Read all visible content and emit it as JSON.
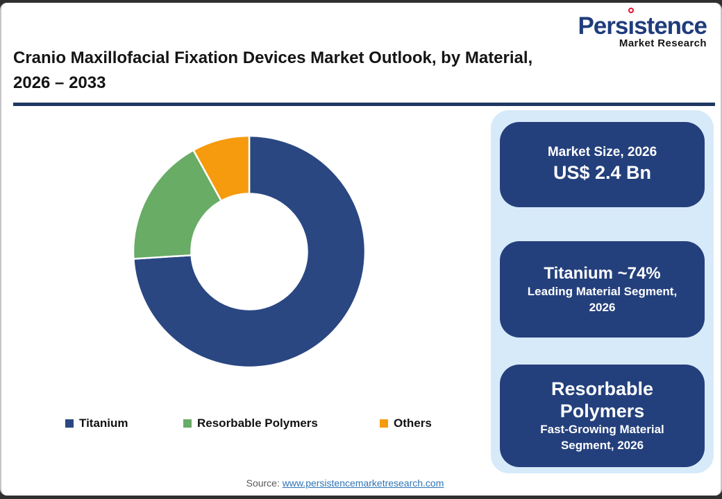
{
  "logo": {
    "brand_pre": "Pers",
    "brand_i": "ı",
    "brand_post": "stence",
    "sub": "Market Research",
    "brand_color": "#1F3D7C",
    "dot_color": "#E8112D"
  },
  "title": {
    "line1": "Cranio Maxillofacial Fixation Devices Market Outlook, by Material,",
    "line2": "2026 – 2033"
  },
  "chart_data": {
    "type": "pie",
    "donut": true,
    "inner_radius_ratio": 0.5,
    "start_angle_deg": 0,
    "direction": "clockwise",
    "categories": [
      "Titanium",
      "Resorbable Polymers",
      "Others"
    ],
    "values": [
      74,
      18,
      8
    ],
    "unit": "%",
    "colors": [
      "#2A4782",
      "#68AC66",
      "#F59B0D"
    ],
    "legend_position": "bottom",
    "title": "Cranio Maxillofacial Fixation Devices Market Outlook, by Material, 2026 – 2033"
  },
  "legend": {
    "items": [
      {
        "label": "Titanium",
        "color": "#2A4782"
      },
      {
        "label": "Resorbable Polymers",
        "color": "#68AC66"
      },
      {
        "label": "Others",
        "color": "#F59B0D"
      }
    ]
  },
  "panel": {
    "background": "#D7EAF9",
    "card_background": "#24407C",
    "cards": [
      {
        "title": "Market Size, 2026",
        "value": "US$ 2.4 Bn"
      },
      {
        "title": "Titanium ~74%",
        "subtitle": "Leading Material Segment, 2026"
      },
      {
        "title": "Resorbable Polymers",
        "subtitle": "Fast-Growing Material Segment, 2026"
      }
    ]
  },
  "source": {
    "label": "Source:",
    "link_text": "www.persistencemarketresearch.com"
  },
  "colors": {
    "title_rule": "#1F3864",
    "link": "#2E75B6",
    "source_text": "#595959"
  }
}
